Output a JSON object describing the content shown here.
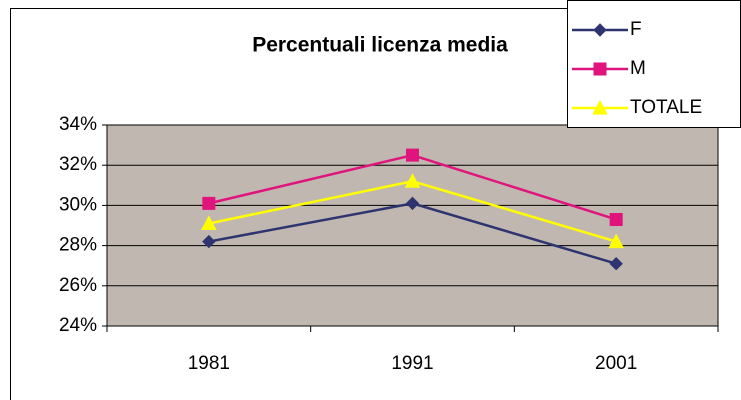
{
  "chart_data": {
    "type": "line",
    "title": "Percentuali licenza media",
    "categories": [
      "1981",
      "1991",
      "2001"
    ],
    "series": [
      {
        "name": "F",
        "color": "#2e3470",
        "marker": "diamond",
        "values": [
          28.2,
          30.1,
          27.1
        ]
      },
      {
        "name": "M",
        "color": "#e0147c",
        "marker": "square",
        "values": [
          30.1,
          32.5,
          29.3
        ]
      },
      {
        "name": "TOTALE",
        "color": "#ffff00",
        "marker": "triangle",
        "values": [
          29.1,
          31.2,
          28.2
        ]
      }
    ],
    "ylim": [
      24,
      34
    ],
    "yticks": [
      {
        "value": 24,
        "label": "24%"
      },
      {
        "value": 26,
        "label": "26%"
      },
      {
        "value": 28,
        "label": "28%"
      },
      {
        "value": 30,
        "label": "30%"
      },
      {
        "value": 32,
        "label": "32%"
      },
      {
        "value": 34,
        "label": "34%"
      }
    ],
    "grid": true,
    "legend": "top-right",
    "plot_background": "#c0b8b0"
  }
}
